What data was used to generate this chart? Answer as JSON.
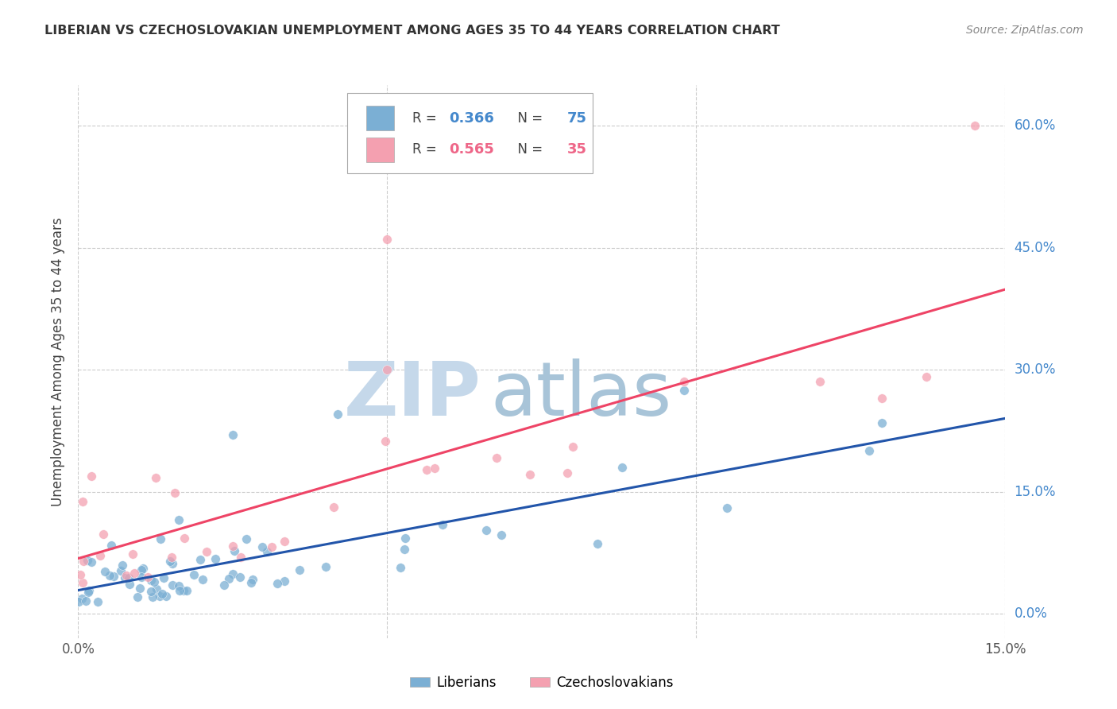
{
  "title": "LIBERIAN VS CZECHOSLOVAKIAN UNEMPLOYMENT AMONG AGES 35 TO 44 YEARS CORRELATION CHART",
  "source": "Source: ZipAtlas.com",
  "ylabel": "Unemployment Among Ages 35 to 44 years",
  "xmin": 0.0,
  "xmax": 0.15,
  "ymin": -0.03,
  "ymax": 0.65,
  "liberian_color": "#7BAFD4",
  "czechoslovakian_color": "#F4A0B0",
  "liberian_line_color": "#2255AA",
  "czechoslovakian_line_color": "#EE4466",
  "R_liberian": 0.366,
  "N_liberian": 75,
  "R_czechoslovakian": 0.565,
  "N_czechoslovakian": 35,
  "legend_label_1": "Liberians",
  "legend_label_2": "Czechoslovakians",
  "right_ytick_labels": [
    "0.0%",
    "15.0%",
    "30.0%",
    "45.0%",
    "60.0%"
  ],
  "right_ytick_values": [
    0.0,
    0.15,
    0.3,
    0.45,
    0.6
  ],
  "xtick_labels": [
    "0.0%",
    "15.0%"
  ],
  "xtick_values": [
    0.0,
    0.15
  ],
  "grid_color": "#CCCCCC",
  "watermark_zip_color": "#C8D8E8",
  "watermark_atlas_color": "#B8CCE4",
  "bg_color": "#FFFFFF",
  "title_color": "#333333",
  "source_color": "#888888",
  "right_tick_color": "#4488CC"
}
